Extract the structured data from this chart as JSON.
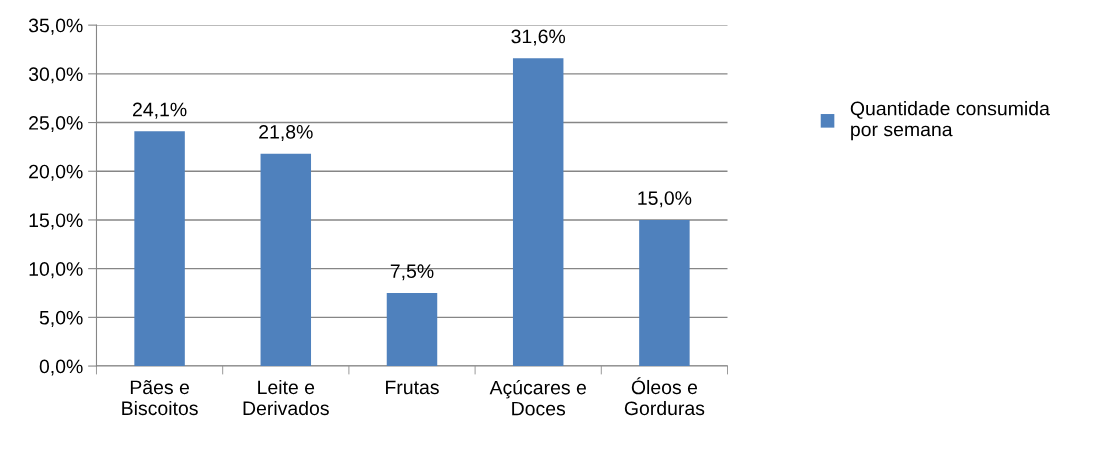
{
  "chart_data": {
    "type": "bar",
    "categories": [
      "Pães e\nBiscoitos",
      "Leite e\nDerivados",
      "Frutas",
      "Açúcares e\nDoces",
      "Óleos e\nGorduras"
    ],
    "series": [
      {
        "name": "Quantidade consumida\npor semana",
        "color": "#4f81bd",
        "values": [
          24.1,
          21.8,
          7.5,
          31.6,
          15.0
        ],
        "value_labels": [
          "24,1%",
          "21,8%",
          "7,5%",
          "31,6%",
          "15,0%"
        ]
      }
    ],
    "ylim": [
      0,
      35
    ],
    "yticks": [
      {
        "value": 0,
        "label": "0,0%"
      },
      {
        "value": 5,
        "label": "5,0%"
      },
      {
        "value": 10,
        "label": "10,0%"
      },
      {
        "value": 15,
        "label": "15,0%"
      },
      {
        "value": 20,
        "label": "20,0%"
      },
      {
        "value": 25,
        "label": "25,0%"
      },
      {
        "value": 30,
        "label": "30,0%"
      },
      {
        "value": 35,
        "label": "35,0%"
      }
    ],
    "grid": "y",
    "legend": "right"
  }
}
